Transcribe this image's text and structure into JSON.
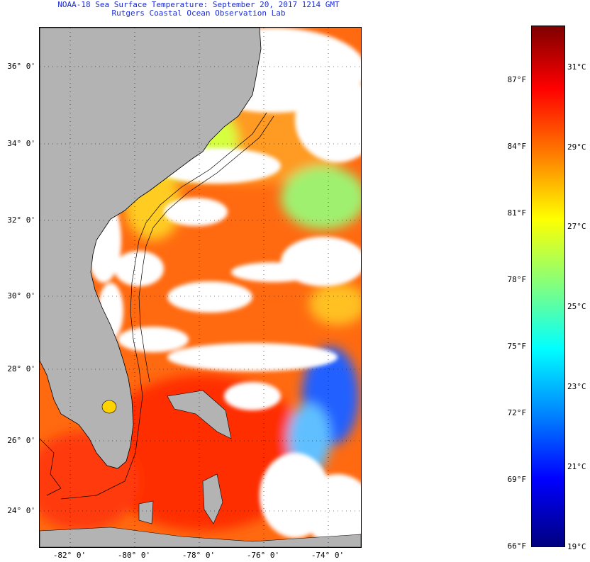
{
  "title": {
    "line1": "NOAA-18 Sea Surface Temperature:  September 20, 2017 1214 GMT",
    "line2": "Rutgers Coastal Ocean Observation Lab"
  },
  "map": {
    "latitude_labels": [
      "36° 0'",
      "34° 0'",
      "32° 0'",
      "30° 0'",
      "28° 0'",
      "26° 0'",
      "24° 0'"
    ],
    "longitude_labels": [
      "-82° 0'",
      "-80° 0'",
      "-78° 0'",
      "-76° 0'",
      "-74° 0'"
    ]
  },
  "colorbar": {
    "fahrenheit_labels": [
      "87°F",
      "84°F",
      "81°F",
      "78°F",
      "75°F",
      "72°F",
      "69°F",
      "66°F"
    ],
    "celsius_labels": [
      "31°C",
      "29°C",
      "27°C",
      "25°C",
      "23°C",
      "21°C",
      "19°C"
    ],
    "gradient_colors": [
      "#00007f",
      "#0000ff",
      "#0080ff",
      "#00ffff",
      "#80ff80",
      "#ffff00",
      "#ff8000",
      "#ff0000",
      "#7f0000"
    ]
  },
  "colors": {
    "land": "#b3b3b3",
    "cloud": "#ffffff",
    "title_text": "#1a2bd6"
  }
}
